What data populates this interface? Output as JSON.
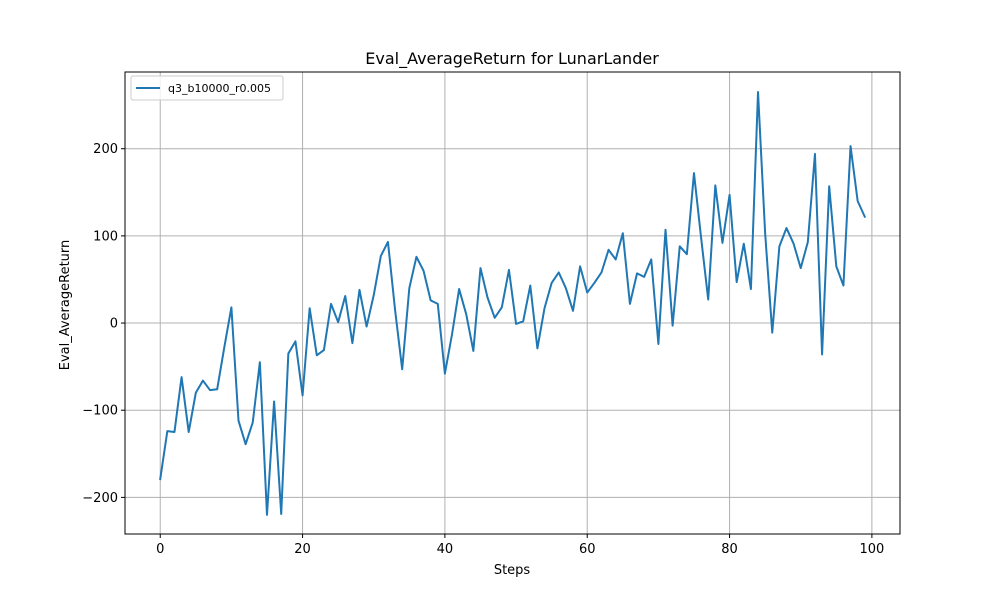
{
  "chart_data": {
    "type": "line",
    "title": "Eval_AverageReturn for LunarLander",
    "xlabel": "Steps",
    "ylabel": "Eval_AverageReturn",
    "xlim": [
      -4.95,
      103.95
    ],
    "ylim": [
      -242,
      288
    ],
    "xticks": [
      0,
      20,
      40,
      60,
      80,
      100
    ],
    "yticks": [
      -200,
      -100,
      0,
      100,
      200
    ],
    "xtick_labels": [
      "0",
      "20",
      "40",
      "60",
      "80",
      "100"
    ],
    "ytick_labels": [
      "−200",
      "−100",
      "0",
      "100",
      "200"
    ],
    "grid": true,
    "legend_position": "upper-left",
    "series": [
      {
        "name": "q3_b10000_r0.005",
        "color": "#1f77b4",
        "x": [
          0,
          1,
          2,
          3,
          4,
          5,
          6,
          7,
          8,
          9,
          10,
          11,
          12,
          13,
          14,
          15,
          16,
          17,
          18,
          19,
          20,
          21,
          22,
          23,
          24,
          25,
          26,
          27,
          28,
          29,
          30,
          31,
          32,
          33,
          34,
          35,
          36,
          37,
          38,
          39,
          40,
          41,
          42,
          43,
          44,
          45,
          46,
          47,
          48,
          49,
          50,
          51,
          52,
          53,
          54,
          55,
          56,
          57,
          58,
          59,
          60,
          61,
          62,
          63,
          64,
          65,
          66,
          67,
          68,
          69,
          70,
          71,
          72,
          73,
          74,
          75,
          76,
          77,
          78,
          79,
          80,
          81,
          82,
          83,
          84,
          85,
          86,
          87,
          88,
          89,
          90,
          91,
          92,
          93,
          94,
          95,
          96,
          97,
          98,
          99
        ],
        "y": [
          -179,
          -124,
          -125,
          -62,
          -125,
          -80,
          -66,
          -77,
          -76,
          -28,
          18,
          -112,
          -139,
          -114,
          -45,
          -220,
          -90,
          -219,
          -35,
          -21,
          -83,
          17,
          -37,
          -31,
          22,
          1,
          31,
          -23,
          38,
          -4,
          32,
          77,
          93,
          15,
          -53,
          40,
          76,
          60,
          26,
          22,
          -58,
          -13,
          39,
          10,
          -32,
          63,
          29,
          6,
          18,
          61,
          -1,
          2,
          43,
          -29,
          17,
          46,
          58,
          40,
          14,
          65,
          35,
          46,
          58,
          84,
          73,
          103,
          22,
          57,
          53,
          73,
          -24,
          107,
          -3,
          88,
          79,
          172,
          98,
          27,
          158,
          92,
          147,
          47,
          91,
          39,
          265,
          103,
          -11,
          88,
          109,
          91,
          63,
          93,
          194,
          -36,
          157,
          65,
          43,
          203,
          140,
          122
        ]
      }
    ]
  }
}
